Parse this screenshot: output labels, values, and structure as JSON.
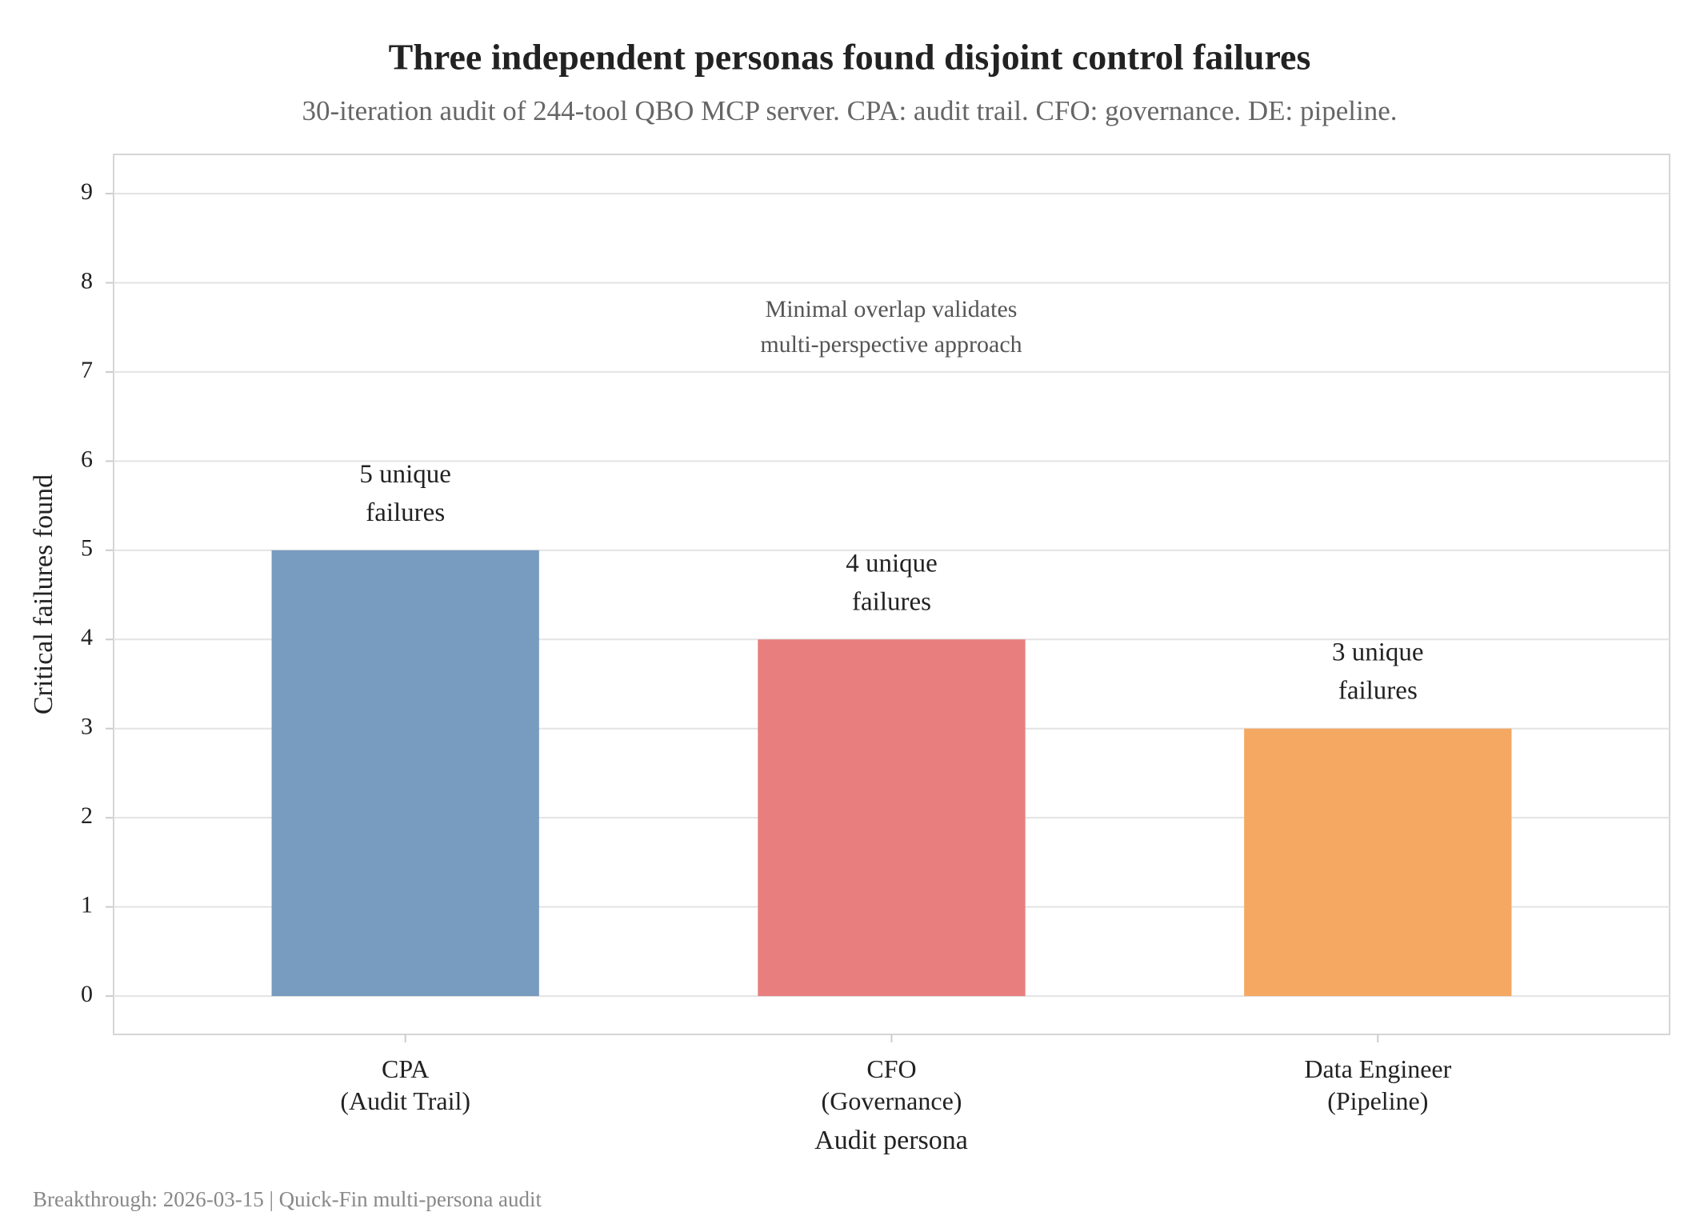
{
  "chart_data": {
    "type": "bar",
    "title": "Three independent personas found disjoint control failures",
    "subtitle": "30-iteration audit of 244-tool QBO MCP server. CPA: audit trail. CFO: governance. DE: pipeline.",
    "x_label": "Audit persona",
    "y_label": "Critical failures found",
    "categories": [
      "CPA\n(Audit Trail)",
      "CFO\n(Governance)",
      "Data Engineer\n(Pipeline)"
    ],
    "values": [
      5,
      4,
      3
    ],
    "value_labels": [
      "5 unique\nfailures",
      "4 unique\nfailures",
      "3 unique\nfailures"
    ],
    "colors": [
      "#789bc0",
      "#e87e7e",
      "#f4a862"
    ],
    "ylim": [
      -0.43,
      9.44
    ],
    "yticks": [
      0,
      1,
      2,
      3,
      4,
      5,
      6,
      7,
      8,
      9
    ],
    "grid": true,
    "annotation": "Minimal overlap validates\nmulti-perspective approach",
    "footer": "Breakthrough: 2026-03-15 | Quick-Fin multi-persona audit"
  }
}
